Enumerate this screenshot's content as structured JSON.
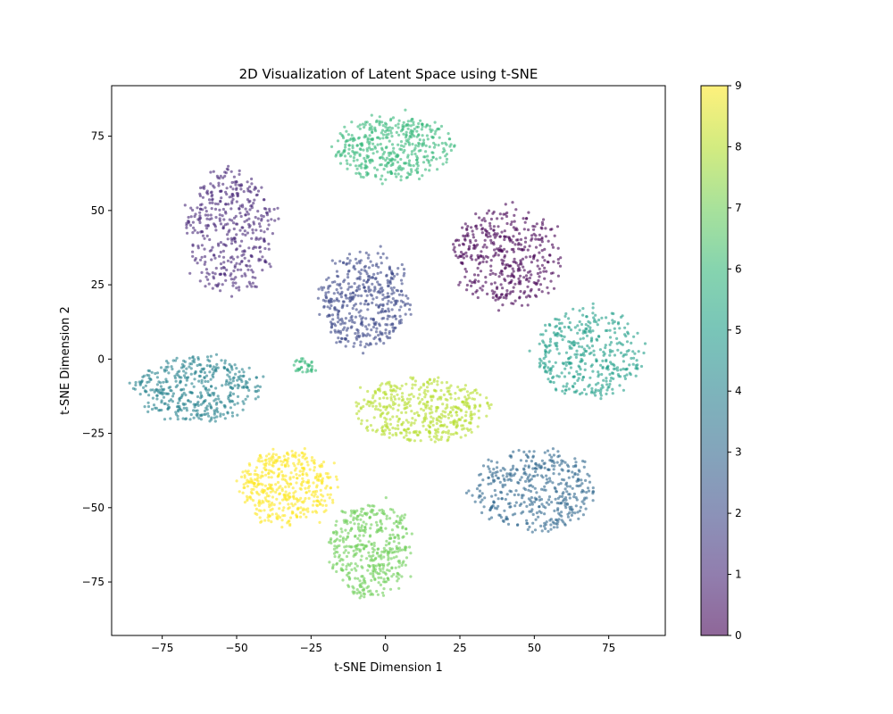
{
  "chart_data": {
    "type": "scatter",
    "title": "2D Visualization of Latent Space using t-SNE",
    "xlabel": "t-SNE Dimension 1",
    "ylabel": "t-SNE Dimension 2",
    "xlim": [
      -92,
      94
    ],
    "ylim": [
      -93,
      92
    ],
    "xticks": [
      -75,
      -50,
      -25,
      0,
      25,
      50,
      75
    ],
    "yticks": [
      -75,
      -50,
      -25,
      0,
      25,
      50,
      75
    ],
    "grid": false,
    "colormap": "viridis",
    "alpha": 0.6,
    "colorbar": {
      "min": 0,
      "max": 9,
      "ticks": [
        0,
        1,
        2,
        3,
        4,
        5,
        6,
        7,
        8,
        9
      ]
    },
    "clusters": [
      {
        "label": 0,
        "center": [
          41,
          34
        ],
        "spread": [
          13,
          12
        ],
        "points": 420
      },
      {
        "label": 1,
        "center": [
          -52,
          43
        ],
        "spread": [
          11,
          15
        ],
        "points": 420
      },
      {
        "label": 2,
        "center": [
          -7,
          20
        ],
        "spread": [
          11,
          12
        ],
        "points": 440
      },
      {
        "label": 3,
        "center": [
          50,
          -44
        ],
        "spread": [
          15,
          10
        ],
        "points": 420
      },
      {
        "label": 4,
        "center": [
          -63,
          -10
        ],
        "spread": [
          15,
          8
        ],
        "points": 420
      },
      {
        "label": 5,
        "center": [
          68,
          2
        ],
        "spread": [
          13,
          11
        ],
        "points": 380
      },
      {
        "label": 6,
        "center": [
          3,
          71
        ],
        "spread": [
          14,
          8
        ],
        "points": 430
      },
      {
        "label": 7,
        "center": [
          -5,
          -64
        ],
        "spread": [
          10,
          12
        ],
        "points": 430
      },
      {
        "label": 8,
        "center": [
          12,
          -17
        ],
        "spread": [
          16,
          8
        ],
        "points": 450
      },
      {
        "label": 9,
        "center": [
          -33,
          -43
        ],
        "spread": [
          12,
          9
        ],
        "points": 440
      },
      {
        "label": 6,
        "center": [
          -27,
          -2
        ],
        "spread": [
          3,
          2
        ],
        "points": 35
      }
    ]
  }
}
